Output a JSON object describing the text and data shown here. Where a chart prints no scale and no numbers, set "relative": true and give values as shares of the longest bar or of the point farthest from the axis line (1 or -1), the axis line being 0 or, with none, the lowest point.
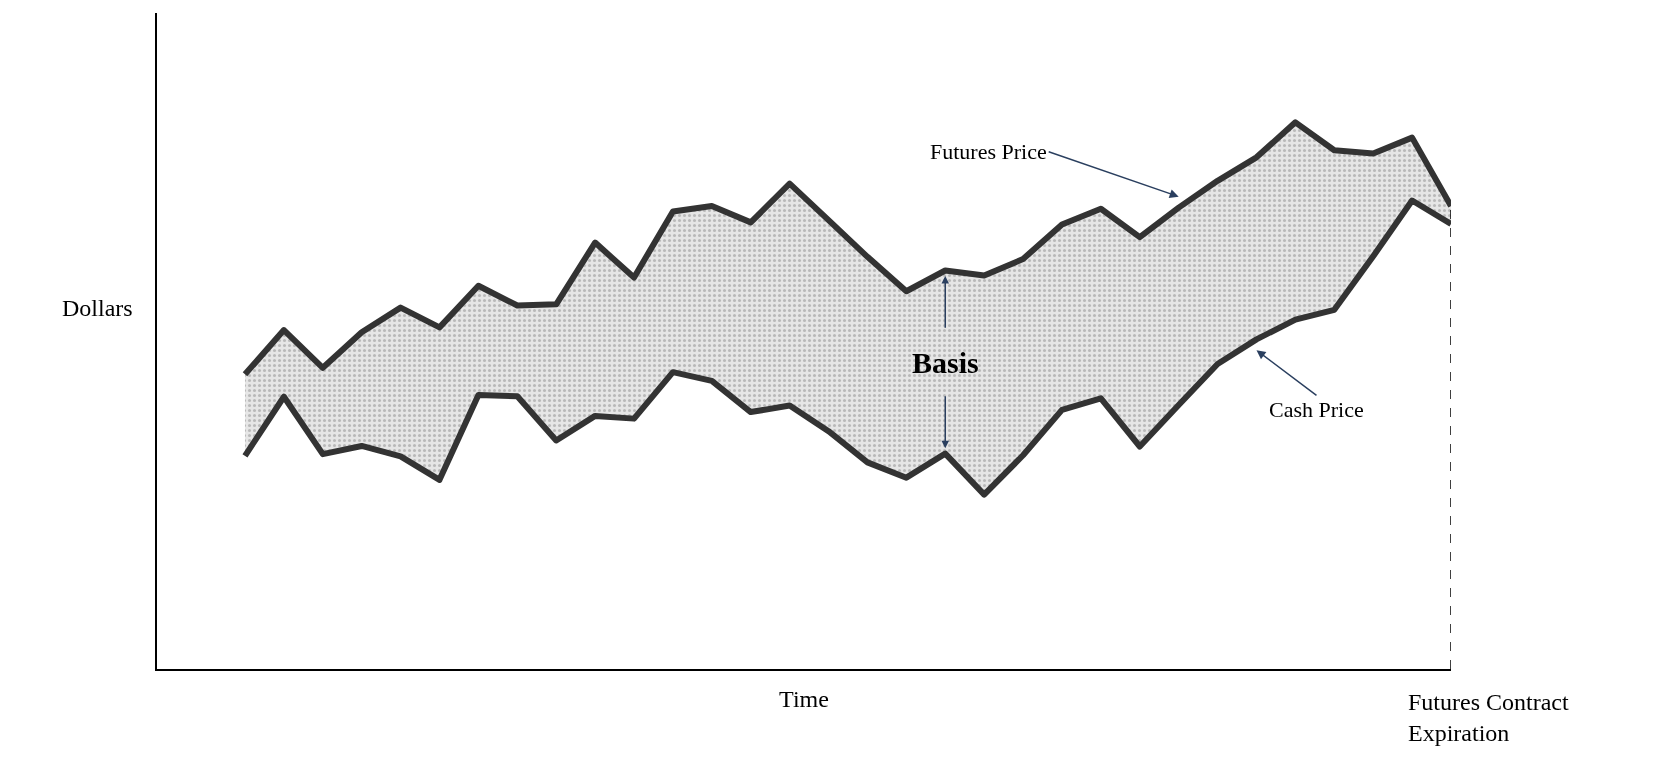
{
  "chart_data": {
    "type": "line",
    "relative": true,
    "xlabel": "Time",
    "ylabel": "Dollars",
    "categories": [
      null,
      null,
      null,
      null,
      null,
      null,
      null,
      null,
      null,
      null,
      null,
      null,
      null,
      null,
      null,
      null,
      null,
      null,
      null,
      null,
      null,
      null,
      null,
      null,
      null,
      null,
      null,
      null,
      null,
      null,
      null,
      null
    ],
    "series": [
      {
        "color": "#333333",
        "values": [
          0.39,
          0.498,
          0.393,
          0.408,
          0.389,
          0.346,
          0.501,
          0.499,
          0.418,
          0.463,
          0.458,
          0.543,
          0.527,
          0.47,
          0.482,
          0.435,
          0.378,
          0.35,
          0.394,
          0.319,
          0.391,
          0.474,
          0.495,
          0.407,
          0.483,
          0.558,
          0.603,
          0.639,
          0.657,
          0.755,
          0.857,
          0.814
        ]
      },
      {
        "type": "area",
        "color": "#333333",
        "values": [
          0.539,
          0.62,
          0.551,
          0.616,
          0.661,
          0.625,
          0.701,
          0.665,
          0.667,
          0.78,
          0.716,
          0.837,
          0.847,
          0.817,
          0.888,
          0.821,
          0.754,
          0.691,
          0.729,
          0.72,
          0.75,
          0.813,
          0.842,
          0.79,
          0.844,
          0.893,
          0.936,
          1.0,
          0.949,
          0.943,
          0.972,
          0.847
        ]
      }
    ],
    "annotations": [
      "Futures Price",
      "Cash Price",
      "Basis"
    ],
    "ref_lines": [
      {
        "axis": "x",
        "label": "Futures Contract Expiration",
        "line_style": "dashed",
        "color": "#000000"
      }
    ]
  }
}
